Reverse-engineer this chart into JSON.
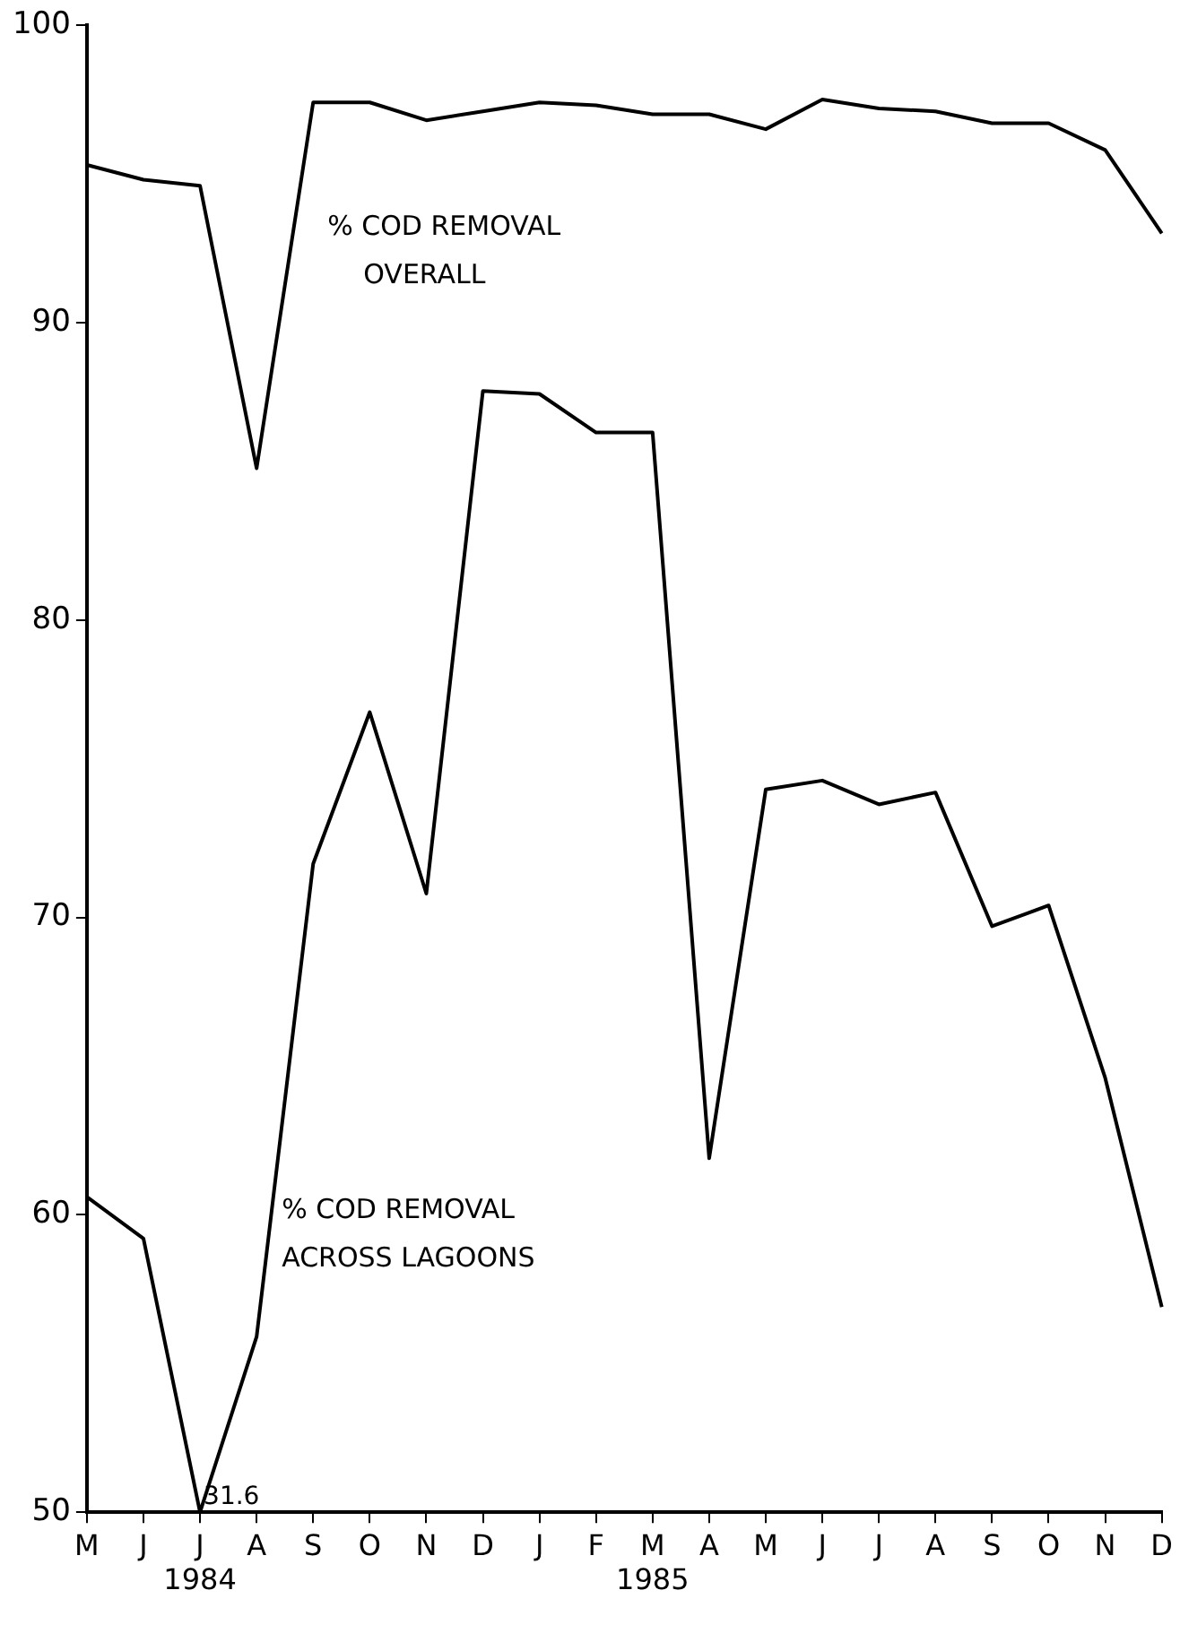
{
  "chart_data": {
    "type": "line",
    "categories": [
      "M",
      "J",
      "J\n1984",
      "A",
      "S",
      "O",
      "N",
      "D",
      "J",
      "F",
      "M\n1985",
      "A",
      "M",
      "J",
      "J",
      "A",
      "S",
      "O",
      "N",
      "D"
    ],
    "series": [
      {
        "name": "% COD REMOVAL\nOVERALL",
        "color": "#000000",
        "values": [
          95.3,
          94.8,
          94.6,
          85.1,
          97.4,
          97.4,
          96.8,
          97.1,
          97.4,
          97.3,
          97.0,
          97.0,
          96.5,
          97.5,
          97.2,
          97.1,
          96.7,
          96.7,
          95.8,
          93.0
        ]
      },
      {
        "name": "% COD REMOVAL\nACROSS LAGOONS",
        "color": "#000000",
        "values": [
          60.6,
          59.2,
          50,
          55.9,
          71.8,
          76.9,
          70.8,
          87.7,
          87.6,
          86.3,
          86.3,
          61.9,
          74.3,
          74.6,
          73.8,
          74.2,
          69.7,
          70.4,
          64.6,
          56.9
        ]
      }
    ],
    "ylim": [
      50,
      100
    ],
    "yticks": [
      50,
      60,
      70,
      80,
      90,
      100
    ],
    "grid": false,
    "legend": false,
    "marker": "none",
    "line_style": "solid",
    "annotations": [
      {
        "text": "31.6",
        "x": "J\n1984",
        "y": 50
      }
    ]
  }
}
